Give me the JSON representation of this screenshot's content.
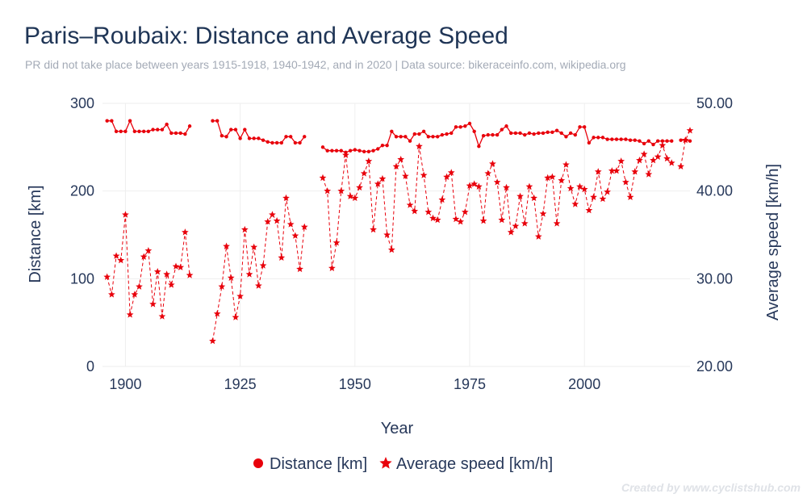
{
  "title": "Paris–Roubaix: Distance and Average Speed",
  "subtitle": "PR did not take place between years 1915-1918, 1940-1942, and in 2020 | Data source: bikeraceinfo.com, wikipedia.org",
  "watermark": "Created by www.cyclistshub.com",
  "colors": {
    "series": "#e8000b",
    "grid": "#eeeeee",
    "text": "#27385a",
    "title": "#1f3556"
  },
  "chart_data": {
    "type": "line",
    "xlabel": "Year",
    "ylabel_left": "Distance [km]",
    "ylabel_right": "Average speed [km/h]",
    "xlim": [
      1895,
      2023
    ],
    "ylim_left": [
      0,
      300
    ],
    "ylim_right": [
      20,
      50
    ],
    "x_ticks": [
      1900,
      1925,
      1950,
      1975,
      2000
    ],
    "y_left_ticks": [
      "0",
      "100",
      "200",
      "300"
    ],
    "y_right_ticks": [
      "20.00",
      "30.00",
      "40.00",
      "50.00"
    ],
    "legend": [
      "Distance [km]",
      "Average speed [km/h]"
    ],
    "series": [
      {
        "name": "Distance [km]",
        "axis": "left",
        "marker": "circle",
        "line": "solid",
        "segments": [
          {
            "x": [
              1896,
              1897,
              1898,
              1899,
              1900,
              1901,
              1902,
              1903,
              1904,
              1905,
              1906,
              1907,
              1908,
              1909,
              1910,
              1911,
              1912,
              1913,
              1914
            ],
            "y": [
              280,
              280,
              268,
              268,
              268,
              280,
              268,
              268,
              268,
              268,
              270,
              270,
              270,
              276,
              266,
              266,
              266,
              265,
              274
            ]
          },
          {
            "x": [
              1919,
              1920,
              1921,
              1922,
              1923,
              1924,
              1925,
              1926,
              1927,
              1928,
              1929,
              1930,
              1931,
              1932,
              1933,
              1934,
              1935,
              1936,
              1937,
              1938,
              1939
            ],
            "y": [
              280,
              280,
              263,
              262,
              270,
              270,
              260,
              270,
              260,
              260,
              260,
              258,
              256,
              255,
              255,
              255,
              262,
              262,
              255,
              255,
              262
            ]
          },
          {
            "x": [
              1943,
              1944,
              1945,
              1946,
              1947,
              1948,
              1949,
              1950,
              1951,
              1952,
              1953,
              1954,
              1955,
              1956,
              1957,
              1958,
              1959,
              1960,
              1961,
              1962,
              1963,
              1964,
              1965,
              1966,
              1967,
              1968,
              1969,
              1970,
              1971,
              1972,
              1973,
              1974,
              1975,
              1976,
              1977,
              1978,
              1979,
              1980,
              1981,
              1982,
              1983,
              1984,
              1985,
              1986,
              1987,
              1988,
              1989,
              1990,
              1991,
              1992,
              1993,
              1994,
              1995,
              1996,
              1997,
              1998,
              1999,
              2000,
              2001,
              2002,
              2003,
              2004,
              2005,
              2006,
              2007,
              2008,
              2009,
              2010,
              2011,
              2012,
              2013,
              2014,
              2015,
              2016,
              2017,
              2018,
              2019
            ],
            "y": [
              250,
              246,
              246,
              246,
              246,
              244,
              246,
              247,
              246,
              245,
              245,
              246,
              248,
              252,
              252,
              268,
              262,
              262,
              262,
              257,
              265,
              265,
              268,
              262,
              262,
              262,
              264,
              265,
              266,
              273,
              273,
              274,
              277,
              268,
              251,
              263,
              264,
              264,
              264,
              270,
              274,
              266,
              266,
              266,
              264,
              266,
              265,
              266,
              266,
              267,
              267,
              269,
              266,
              262,
              266,
              264,
              273,
              273,
              255,
              261,
              261,
              261,
              259,
              259,
              259,
              259,
              259,
              258,
              258,
              257,
              254,
              257,
              253,
              257,
              257,
              257,
              257
            ]
          },
          {
            "x": [
              2021,
              2022,
              2023
            ],
            "y": [
              258,
              258,
              257
            ]
          }
        ]
      },
      {
        "name": "Average speed [km/h]",
        "axis": "right",
        "marker": "star",
        "line": "dashed",
        "segments": [
          {
            "x": [
              1896,
              1897,
              1898,
              1899,
              1900,
              1901,
              1902,
              1903,
              1904,
              1905,
              1906,
              1907,
              1908,
              1909,
              1910,
              1911,
              1912,
              1913,
              1914
            ],
            "y": [
              30.2,
              28.2,
              32.6,
              32.1,
              37.3,
              25.9,
              28.2,
              29.1,
              32.5,
              33.2,
              27.1,
              30.8,
              25.7,
              30.5,
              29.3,
              31.4,
              31.3,
              35.3,
              30.4
            ]
          },
          {
            "x": [
              1919,
              1920,
              1921,
              1922,
              1923,
              1924,
              1925,
              1926,
              1927,
              1928,
              1929,
              1930,
              1931,
              1932,
              1933,
              1934,
              1935,
              1936,
              1937,
              1938,
              1939
            ],
            "y": [
              22.9,
              26.0,
              29.1,
              33.7,
              30.1,
              25.6,
              28.0,
              35.6,
              30.5,
              33.6,
              29.2,
              31.5,
              36.5,
              37.3,
              36.6,
              32.4,
              39.2,
              36.2,
              34.9,
              31.1,
              35.9
            ]
          },
          {
            "x": [
              1943,
              1944,
              1945,
              1946,
              1947,
              1948,
              1949,
              1950,
              1951,
              1952,
              1953,
              1954,
              1955,
              1956,
              1957,
              1958,
              1959,
              1960,
              1961,
              1962,
              1963,
              1964,
              1965,
              1966,
              1967,
              1968,
              1969,
              1970,
              1971,
              1972,
              1973,
              1974,
              1975,
              1976,
              1977,
              1978,
              1979,
              1980,
              1981,
              1982,
              1983,
              1984,
              1985,
              1986,
              1987,
              1988,
              1989,
              1990,
              1991,
              1992,
              1993,
              1994,
              1995,
              1996,
              1997,
              1998,
              1999,
              2000,
              2001,
              2002,
              2003,
              2004,
              2005,
              2006,
              2007,
              2008,
              2009,
              2010,
              2011,
              2012,
              2013,
              2014,
              2015,
              2016,
              2017,
              2018,
              2019
            ],
            "y": [
              41.5,
              40.0,
              31.2,
              34.1,
              40.0,
              44.1,
              39.4,
              39.2,
              40.4,
              42.0,
              43.4,
              35.6,
              40.8,
              41.4,
              35.0,
              33.3,
              42.8,
              43.6,
              41.7,
              38.4,
              37.7,
              45.1,
              41.8,
              37.6,
              36.9,
              36.7,
              39.0,
              41.6,
              42.1,
              36.8,
              36.5,
              37.6,
              40.6,
              40.8,
              40.5,
              36.6,
              42.0,
              43.1,
              41.0,
              36.7,
              40.4,
              35.3,
              36.0,
              39.4,
              36.3,
              40.5,
              39.2,
              34.8,
              37.4,
              41.5,
              41.6,
              36.3,
              41.2,
              43.0,
              40.3,
              38.5,
              40.5,
              40.2,
              37.8,
              39.3,
              42.2,
              39.1,
              39.9,
              42.3,
              42.3,
              43.4,
              41.0,
              39.3,
              42.2,
              43.5,
              44.2,
              41.9,
              43.5,
              43.9,
              45.2,
              43.7,
              43.2
            ]
          },
          {
            "x": [
              2021,
              2022,
              2023
            ],
            "y": [
              42.8,
              45.8,
              46.9
            ]
          }
        ]
      }
    ]
  }
}
